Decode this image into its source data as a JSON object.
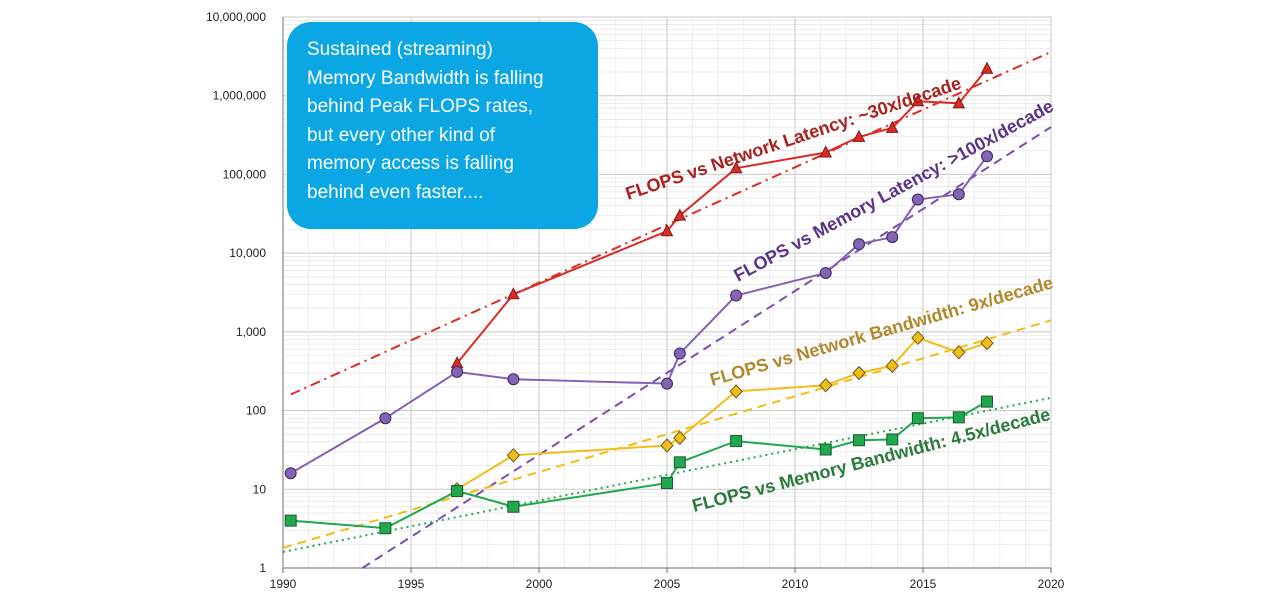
{
  "chart_data": {
    "type": "line",
    "title": "",
    "xlabel": "",
    "ylabel": "",
    "xlim": [
      1990,
      2020
    ],
    "ylim": [
      1,
      10000000
    ],
    "y_scale": "log",
    "grid": true,
    "x_ticks": [
      "1990",
      "1995",
      "2000",
      "2005",
      "2010",
      "2015",
      "2020"
    ],
    "y_ticks": [
      "1",
      "10",
      "100",
      "1,000",
      "10,000",
      "100,000",
      "1,000,000",
      "10,000,000"
    ],
    "series": [
      {
        "color": "#dc2a25",
        "marker": "triangle",
        "points": [
          [
            1996.8,
            400
          ],
          [
            1999,
            3000
          ],
          [
            2005,
            19000
          ],
          [
            2005.5,
            30000
          ],
          [
            2007.7,
            120000
          ],
          [
            2011.2,
            190000
          ],
          [
            2012.5,
            300000
          ],
          [
            2013.8,
            390000
          ],
          [
            2014.8,
            850000
          ],
          [
            2016.4,
            800000
          ],
          [
            2017.5,
            2200000
          ]
        ]
      },
      {
        "color": "#8462b4",
        "marker": "circle",
        "points": [
          [
            1990.3,
            16
          ],
          [
            1994,
            80
          ],
          [
            1996.8,
            310
          ],
          [
            1999,
            250
          ],
          [
            2005,
            220
          ],
          [
            2005.5,
            530
          ],
          [
            2007.7,
            2900
          ],
          [
            2011.2,
            5600
          ],
          [
            2012.5,
            13000
          ],
          [
            2013.8,
            16000
          ],
          [
            2014.8,
            48000
          ],
          [
            2016.4,
            56000
          ],
          [
            2017.5,
            170000
          ]
        ]
      },
      {
        "color": "#f2bd17",
        "marker": "diamond",
        "points": [
          [
            1996.8,
            10
          ],
          [
            1999,
            27
          ],
          [
            2005,
            36
          ],
          [
            2005.5,
            45
          ],
          [
            2007.7,
            175
          ],
          [
            2011.2,
            210
          ],
          [
            2012.5,
            300
          ],
          [
            2013.8,
            370
          ],
          [
            2014.8,
            840
          ],
          [
            2016.4,
            550
          ],
          [
            2017.5,
            720
          ]
        ]
      },
      {
        "color": "#1fa84e",
        "marker": "square",
        "points": [
          [
            1990.3,
            4
          ],
          [
            1994,
            3.2
          ],
          [
            1996.8,
            9.5
          ],
          [
            1999,
            6
          ],
          [
            2005,
            12
          ],
          [
            2005.5,
            22
          ],
          [
            2007.7,
            41
          ],
          [
            2011.2,
            32
          ],
          [
            2012.5,
            42
          ],
          [
            2013.8,
            43
          ],
          [
            2014.8,
            80
          ],
          [
            2016.4,
            82
          ],
          [
            2017.5,
            130
          ]
        ]
      }
    ],
    "trendlines": [
      {
        "color": "#dc2a25",
        "style": "dash-dot",
        "from": [
          1990.3,
          160
        ],
        "to": [
          2020,
          3600000
        ]
      },
      {
        "color": "#7b4fad",
        "style": "dashed",
        "from": [
          1993.1,
          1
        ],
        "to": [
          2020,
          400000
        ]
      },
      {
        "color": "#f2bd17",
        "style": "dashed",
        "from": [
          1990,
          1.8
        ],
        "to": [
          2020,
          1400
        ]
      },
      {
        "color": "#1fa84e",
        "style": "dotted",
        "from": [
          1990,
          1.6
        ],
        "to": [
          2020,
          145
        ]
      }
    ],
    "annotations": [
      {
        "text": "FLOPS vs Network Latency: ~30x/decade",
        "color": "#a9201e"
      },
      {
        "text": "FLOPS vs Memory Latency: >100x/decade",
        "color": "#5b3488"
      },
      {
        "text": "FLOPS vs Network Bandwidth: 9x/decade",
        "color": "#b1892c"
      },
      {
        "text": "FLOPS vs Memory Bandwidth: 4.5x/decade",
        "color": "#2b7a3c"
      }
    ],
    "callout": {
      "lines": [
        "Sustained (streaming)",
        "Memory Bandwidth is falling",
        "behind Peak FLOPS rates,",
        "but every other kind of",
        "memory access is falling",
        "behind even faster...."
      ],
      "background": "#0aa7e4"
    }
  }
}
